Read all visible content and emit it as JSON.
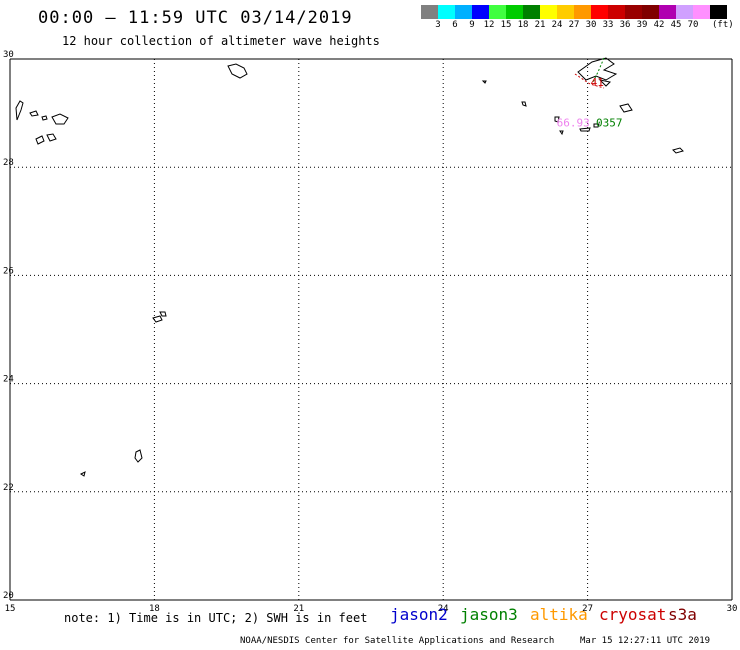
{
  "header": {
    "title": "00:00 – 11:59 UTC 03/14/2019",
    "subtitle": "12 hour collection of altimeter wave heights"
  },
  "legend": {
    "colors": [
      "#808080",
      "#00ffff",
      "#00b0ff",
      "#0000ff",
      "#40ff40",
      "#00cc00",
      "#008000",
      "#ffff00",
      "#ffcc00",
      "#ff9900",
      "#ff0000",
      "#cc0000",
      "#990000",
      "#800000",
      "#b000b0",
      "#d0a0ff",
      "#ff90ff",
      "#000000"
    ],
    "labels": [
      "3",
      "6",
      "9",
      "12",
      "15",
      "18",
      "21",
      "24",
      "27",
      "30",
      "33",
      "36",
      "39",
      "42",
      "45",
      "70"
    ],
    "unit": "(ft)"
  },
  "map": {
    "lon_range": [
      15,
      30
    ],
    "lat_range": [
      20,
      30
    ],
    "lon_ticks": [
      "15",
      "18",
      "21",
      "24",
      "27",
      "30"
    ],
    "lat_ticks": [
      "30",
      "28",
      "26",
      "24",
      "22",
      "20"
    ],
    "grid": "dotted",
    "observations": [
      {
        "text": "66.93",
        "color": "#ee82ee",
        "lon": 26.7,
        "lat": 28.75
      },
      {
        "text": "0357",
        "color": "#008000",
        "lon": 27.45,
        "lat": 28.75
      },
      {
        "text": "41",
        "color": "#cc0000",
        "lon": 27.2,
        "lat": 29.5
      }
    ]
  },
  "footer": {
    "note": "note: 1) Time is in UTC; 2) SWH is in feet",
    "satellites": [
      {
        "name": "jason2",
        "color": "#0000cc"
      },
      {
        "name": "jason3",
        "color": "#008000"
      },
      {
        "name": "altika",
        "color": "#ff9900"
      },
      {
        "name": "cryosat",
        "color": "#cc0000"
      },
      {
        "name": "s3a",
        "color": "#800000"
      }
    ],
    "credit": "NOAA/NESDIS Center for Satellite Applications and Research",
    "generated": "Mar 15 12:27:11 UTC 2019"
  }
}
